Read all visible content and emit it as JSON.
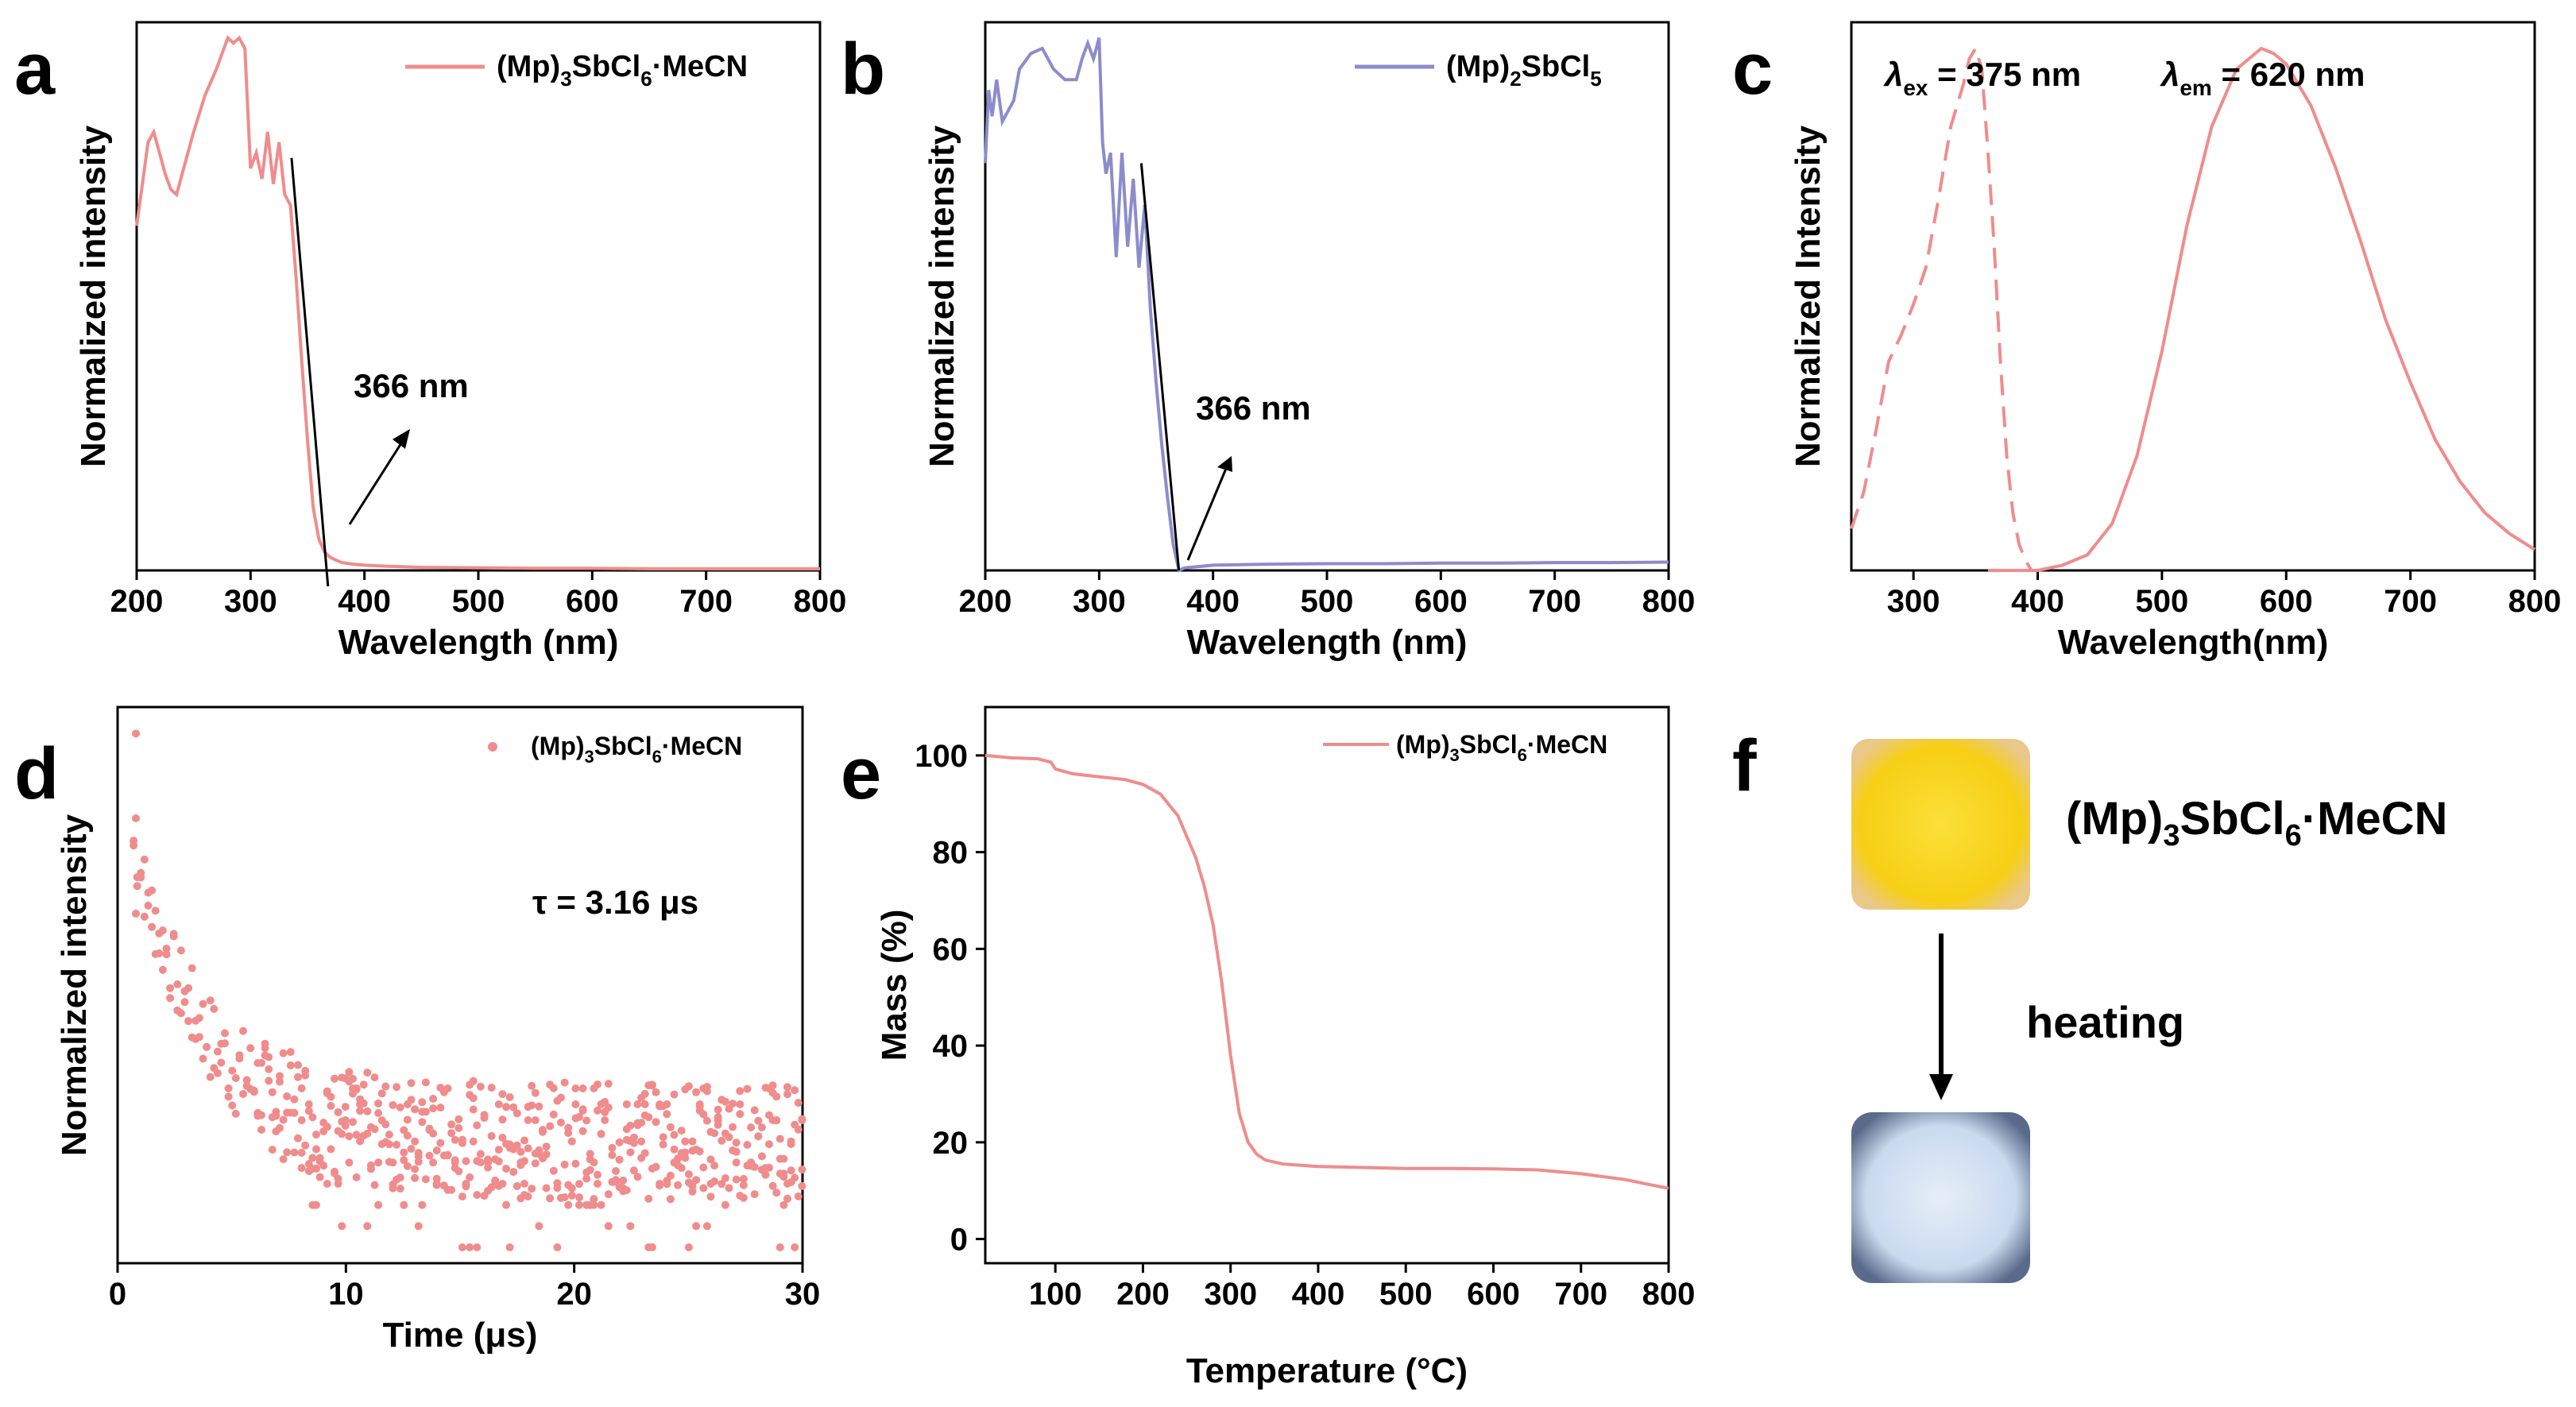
{
  "colors": {
    "pink": "#f08c8c",
    "purple": "#8c8ccc",
    "axis": "#000000",
    "yellow": "#f7d21e",
    "blue_white": "#d8e6f5"
  },
  "figure": {
    "panel_letters": [
      "a",
      "b",
      "c",
      "d",
      "e",
      "f"
    ]
  },
  "chart_data": [
    {
      "id": "a",
      "type": "line",
      "title": "",
      "xlabel": "Wavelength (nm)",
      "ylabel": "Normalized intensity",
      "xlim": [
        200,
        800
      ],
      "ylim": [
        0,
        1.05
      ],
      "xticks": [
        200,
        300,
        400,
        500,
        600,
        700,
        800
      ],
      "legend": {
        "label_main": "(Mp)",
        "label_sub1": "3",
        "label_mid": "SbCl",
        "label_sub2": "6",
        "label_end": "·MeCN",
        "placement": "top-right"
      },
      "series": [
        {
          "name": "(Mp)3SbCl6·MeCN",
          "x": [
            200,
            205,
            210,
            215,
            220,
            225,
            230,
            235,
            240,
            250,
            260,
            270,
            280,
            285,
            290,
            295,
            300,
            305,
            310,
            315,
            320,
            325,
            330,
            335,
            340,
            345,
            350,
            355,
            360,
            365,
            370,
            375,
            380,
            390,
            400,
            420,
            450,
            500,
            550,
            600,
            650,
            700,
            750,
            800
          ],
          "y": [
            0.66,
            0.74,
            0.82,
            0.84,
            0.8,
            0.76,
            0.73,
            0.72,
            0.76,
            0.84,
            0.91,
            0.96,
            1.02,
            1.01,
            1.02,
            1.0,
            0.77,
            0.8,
            0.75,
            0.84,
            0.74,
            0.82,
            0.72,
            0.7,
            0.56,
            0.4,
            0.25,
            0.12,
            0.06,
            0.035,
            0.025,
            0.02,
            0.015,
            0.012,
            0.01,
            0.008,
            0.006,
            0.005,
            0.004,
            0.004,
            0.003,
            0.003,
            0.003,
            0.003
          ]
        }
      ],
      "edge_line": {
        "x": [
          336,
          368
        ],
        "y": [
          0.79,
          0.0
        ]
      },
      "annotation": {
        "text": "366 nm",
        "x": 366
      }
    },
    {
      "id": "b",
      "type": "line",
      "xlabel": "Wavelength (nm)",
      "ylabel": "Normalized intensity",
      "xlim": [
        200,
        800
      ],
      "ylim": [
        0,
        1.05
      ],
      "xticks": [
        200,
        300,
        400,
        500,
        600,
        700,
        800
      ],
      "legend": {
        "label_main": "(Mp)",
        "label_sub1": "2",
        "label_mid": "SbCl",
        "label_sub2": "5",
        "label_end": "",
        "placement": "top-right"
      },
      "series": [
        {
          "name": "(Mp)2SbCl5",
          "x": [
            200,
            203,
            206,
            210,
            215,
            220,
            225,
            230,
            240,
            250,
            260,
            270,
            280,
            285,
            290,
            295,
            300,
            303,
            306,
            310,
            315,
            320,
            325,
            330,
            335,
            340,
            345,
            350,
            355,
            360,
            365,
            370,
            375,
            380,
            400,
            450,
            500,
            550,
            600,
            650,
            700,
            750,
            800
          ],
          "y": [
            0.78,
            0.92,
            0.87,
            0.94,
            0.86,
            0.88,
            0.9,
            0.96,
            0.99,
            1.0,
            0.96,
            0.94,
            0.94,
            0.98,
            1.01,
            0.98,
            1.02,
            0.82,
            0.76,
            0.8,
            0.6,
            0.8,
            0.62,
            0.75,
            0.58,
            0.7,
            0.5,
            0.36,
            0.24,
            0.14,
            0.05,
            0.0,
            0.005,
            0.006,
            0.01,
            0.012,
            0.013,
            0.013,
            0.014,
            0.014,
            0.015,
            0.015,
            0.016
          ]
        }
      ],
      "edge_line": {
        "x": [
          337,
          370
        ],
        "y": [
          0.78,
          0.0
        ]
      },
      "annotation": {
        "text": "366 nm",
        "x": 366
      }
    },
    {
      "id": "c",
      "type": "line",
      "xlabel": "Wavelength(nm)",
      "ylabel": "Normalized Intensity",
      "xlim": [
        250,
        800
      ],
      "ylim": [
        0,
        1.05
      ],
      "xticks": [
        300,
        400,
        500,
        600,
        700,
        800
      ],
      "annotations": [
        {
          "symbol": "λ",
          "sub": "ex",
          "text": " = 375 nm"
        },
        {
          "symbol": "λ",
          "sub": "em",
          "text": " = 620 nm"
        }
      ],
      "series": [
        {
          "name": "excitation",
          "dashed": true,
          "x": [
            250,
            260,
            270,
            280,
            290,
            300,
            310,
            320,
            330,
            340,
            345,
            350,
            355,
            360,
            365,
            370,
            375,
            380,
            385,
            390,
            395
          ],
          "y": [
            0.08,
            0.15,
            0.27,
            0.4,
            0.45,
            0.51,
            0.58,
            0.71,
            0.85,
            0.93,
            0.98,
            1.0,
            0.96,
            0.8,
            0.62,
            0.4,
            0.22,
            0.11,
            0.05,
            0.02,
            0.0
          ]
        },
        {
          "name": "emission",
          "dashed": false,
          "x": [
            360,
            400,
            420,
            440,
            460,
            480,
            500,
            520,
            540,
            560,
            580,
            590,
            600,
            620,
            640,
            660,
            680,
            700,
            720,
            740,
            760,
            780,
            800
          ],
          "y": [
            0.0,
            0.0,
            0.01,
            0.03,
            0.09,
            0.22,
            0.42,
            0.66,
            0.85,
            0.96,
            1.0,
            0.99,
            0.97,
            0.89,
            0.77,
            0.63,
            0.48,
            0.36,
            0.25,
            0.17,
            0.11,
            0.07,
            0.04
          ]
        }
      ]
    },
    {
      "id": "d",
      "type": "scatter",
      "xlabel": "Time (μs)",
      "ylabel": "Normalized intensity",
      "xlim": [
        0,
        30
      ],
      "ylim": [
        0,
        1.05
      ],
      "xticks": [
        0,
        10,
        20,
        30
      ],
      "legend": {
        "label_main": "(Mp)",
        "label_sub1": "3",
        "label_mid": "SbCl",
        "label_sub2": "6",
        "label_end": "·MeCN",
        "placement": "top-right"
      },
      "annotation": {
        "text": "τ = 3.16 μs"
      },
      "tau": 3.16,
      "decay": {
        "t_start": 0.7,
        "t_end": 30,
        "amplitude": 0.56,
        "floor": 0.23
      },
      "outliers": [
        {
          "x": 0.8,
          "y": 1.0
        },
        {
          "x": 0.8,
          "y": 0.84
        },
        {
          "x": 0.8,
          "y": 0.66
        }
      ],
      "noise_levels": [
        0.0,
        0.04,
        0.08,
        0.12,
        0.16,
        0.2,
        0.24,
        0.27,
        0.3
      ]
    },
    {
      "id": "e",
      "type": "line",
      "xlabel": "Temperature (°C)",
      "ylabel": "Mass (%)",
      "xlim": [
        20,
        800
      ],
      "ylim": [
        -5,
        110
      ],
      "xticks": [
        100,
        200,
        300,
        400,
        500,
        600,
        700,
        800
      ],
      "yticks": [
        0,
        20,
        40,
        60,
        80,
        100
      ],
      "legend": {
        "label_main": "(Mp)",
        "label_sub1": "3",
        "label_mid": "SbCl",
        "label_sub2": "6",
        "label_end": "·MeCN",
        "placement": "top-right"
      },
      "series": [
        {
          "name": "(Mp)3SbCl6·MeCN",
          "x": [
            20,
            50,
            80,
            95,
            100,
            120,
            150,
            180,
            200,
            220,
            240,
            260,
            270,
            280,
            290,
            300,
            310,
            320,
            330,
            340,
            360,
            400,
            450,
            500,
            550,
            600,
            650,
            700,
            750,
            780,
            800
          ],
          "y": [
            100,
            99.5,
            99.3,
            98.6,
            97.2,
            96.2,
            95.6,
            95.0,
            94.0,
            92.0,
            87.5,
            79.0,
            73.0,
            65.0,
            53.0,
            38.0,
            26.0,
            20.0,
            17.5,
            16.3,
            15.5,
            15.0,
            14.8,
            14.6,
            14.6,
            14.5,
            14.3,
            13.5,
            12.3,
            11.2,
            10.5
          ]
        }
      ]
    }
  ],
  "panel_f": {
    "label_main": "(Mp)",
    "label_sub1": "3",
    "label_mid": "SbCl",
    "label_sub2": "6",
    "label_end": "·MeCN",
    "heating_label": "heating",
    "before_color": "#f7d21e",
    "after_color": "#d8e6f5"
  }
}
